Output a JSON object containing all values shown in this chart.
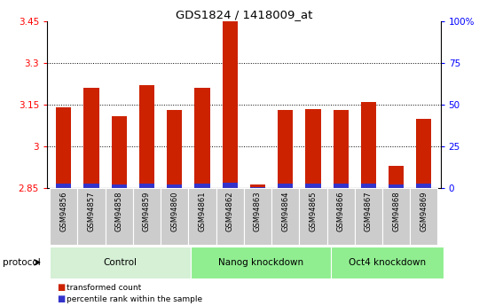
{
  "title": "GDS1824 / 1418009_at",
  "samples": [
    "GSM94856",
    "GSM94857",
    "GSM94858",
    "GSM94859",
    "GSM94860",
    "GSM94861",
    "GSM94862",
    "GSM94863",
    "GSM94864",
    "GSM94865",
    "GSM94866",
    "GSM94867",
    "GSM94868",
    "GSM94869"
  ],
  "transformed_count": [
    3.14,
    3.21,
    3.11,
    3.22,
    3.13,
    3.21,
    3.45,
    2.862,
    3.13,
    3.135,
    3.13,
    3.16,
    2.93,
    3.1
  ],
  "percentile_rank_scaled": [
    0.017,
    0.017,
    0.014,
    0.016,
    0.014,
    0.016,
    0.02,
    0.003,
    0.017,
    0.017,
    0.016,
    0.016,
    0.013,
    0.015
  ],
  "ymin": 2.85,
  "ymax": 3.45,
  "yticks": [
    2.85,
    3.0,
    3.15,
    3.3,
    3.45
  ],
  "ytick_labels": [
    "2.85",
    "3",
    "3.15",
    "3.3",
    "3.45"
  ],
  "right_ytick_vals": [
    2.85,
    3.0,
    3.15,
    3.3,
    3.45
  ],
  "right_ytick_labels": [
    "0",
    "25",
    "50",
    "75",
    "100%"
  ],
  "groups": [
    {
      "label": "Control",
      "start": 0,
      "end": 4
    },
    {
      "label": "Nanog knockdown",
      "start": 5,
      "end": 9
    },
    {
      "label": "Oct4 knockdown",
      "start": 10,
      "end": 13
    }
  ],
  "group_colors": [
    "#d5f0d5",
    "#90ee90",
    "#90ee90"
  ],
  "bar_color_red": "#cc2200",
  "bar_color_blue": "#3333cc",
  "tick_bg_color": "#cccccc",
  "bar_width": 0.55,
  "protocol_label": "protocol"
}
